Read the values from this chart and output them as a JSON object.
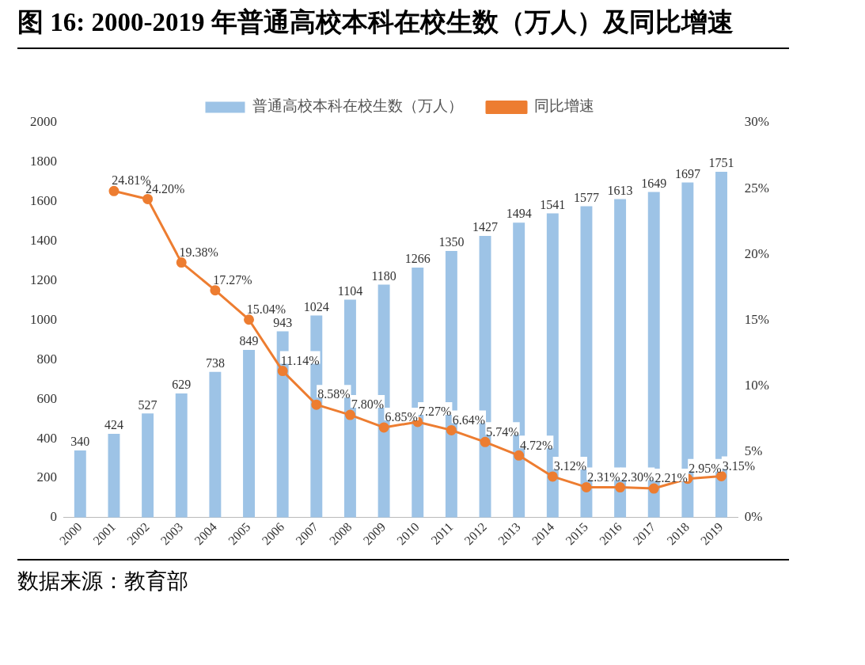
{
  "chart_data": {
    "type": "bar",
    "title": "图  16: 2000-2019 年普通高校本科在校生数（万人）及同比增速",
    "categories": [
      "2000",
      "2001",
      "2002",
      "2003",
      "2004",
      "2005",
      "2006",
      "2007",
      "2008",
      "2009",
      "2010",
      "2011",
      "2012",
      "2013",
      "2014",
      "2015",
      "2016",
      "2017",
      "2018",
      "2019"
    ],
    "series": [
      {
        "name": "普通高校本科在校生数（万人）",
        "color": "#9dc3e6",
        "values": [
          340,
          424,
          527,
          629,
          738,
          849,
          943,
          1024,
          1104,
          1180,
          1266,
          1350,
          1427,
          1494,
          1541,
          1577,
          1613,
          1649,
          1697,
          1751
        ],
        "value_labels": [
          "340",
          "424",
          "527",
          "629",
          "738",
          "849",
          "943",
          "1024",
          "1104",
          "1180",
          "1266",
          "1350",
          "1427",
          "1494",
          "1541",
          "1577",
          "1613",
          "1649",
          "1697",
          "1751"
        ]
      },
      {
        "name": "同比增速",
        "type": "line",
        "axis": "y2",
        "color": "#ed7d31",
        "values": [
          null,
          24.81,
          24.2,
          19.38,
          17.27,
          15.04,
          11.14,
          8.58,
          7.8,
          6.85,
          7.27,
          6.64,
          5.74,
          4.72,
          3.12,
          2.31,
          2.3,
          2.21,
          2.95,
          3.15
        ],
        "value_labels": [
          null,
          "24.81%",
          "24.20%",
          "19.38%",
          "17.27%",
          "15.04%",
          "11.14%",
          "8.58%",
          "7.80%",
          "6.85%",
          "7.27%",
          "6.64%",
          "5.74%",
          "4.72%",
          "3.12%",
          "2.31%",
          "2.30%",
          "2.21%",
          "2.95%",
          "3.15%"
        ]
      }
    ],
    "ylim": [
      0,
      2000
    ],
    "yticks": [
      0,
      200,
      400,
      600,
      800,
      1000,
      1200,
      1400,
      1600,
      1800,
      2000
    ],
    "y2lim": [
      0,
      30
    ],
    "y2ticks": [
      {
        "value": 0,
        "label": "0%"
      },
      {
        "value": 5,
        "label": "5%"
      },
      {
        "value": 10,
        "label": "10%"
      },
      {
        "value": 15,
        "label": "15%"
      },
      {
        "value": 20,
        "label": "20%"
      },
      {
        "value": 25,
        "label": "25%"
      },
      {
        "value": 30,
        "label": "30%"
      }
    ],
    "grid": false,
    "legend": "top",
    "marker": "circle",
    "line_style": "solid",
    "annotations": [
      "数据来源：教育部"
    ]
  }
}
